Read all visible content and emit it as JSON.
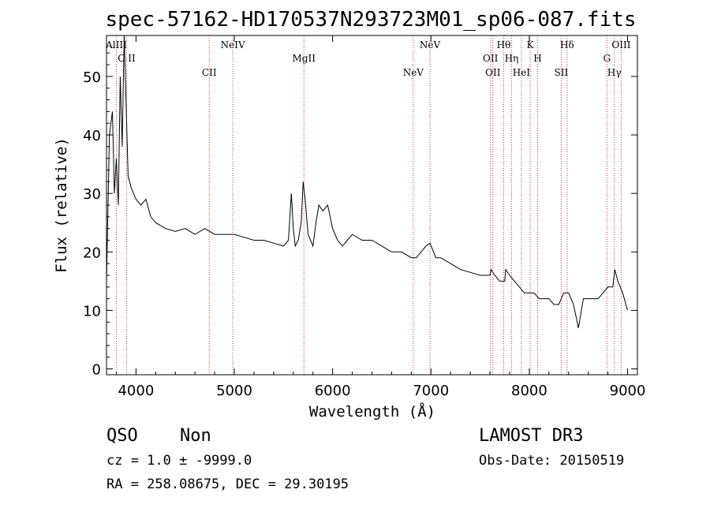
{
  "chart_data": {
    "type": "line",
    "title": "spec-57162-HD170537N293723M01_sp06-087.fits",
    "xlabel": "Wavelength (Å)",
    "ylabel": "Flux (relative)",
    "xlim": [
      3700,
      9100
    ],
    "ylim": [
      -1,
      57
    ],
    "xticks": [
      4000,
      5000,
      6000,
      7000,
      8000,
      9000
    ],
    "yticks": [
      0,
      10,
      20,
      30,
      40,
      50
    ],
    "grid": false,
    "series": [
      {
        "x": [
          3700,
          3730,
          3760,
          3780,
          3800,
          3820,
          3840,
          3860,
          3880,
          3900,
          3920,
          3950,
          4000,
          4050,
          4100,
          4150,
          4200,
          4300,
          4400,
          4500,
          4600,
          4700,
          4800,
          4900,
          5000,
          5100,
          5200,
          5300,
          5400,
          5500,
          5550,
          5580,
          5600,
          5620,
          5650,
          5680,
          5700,
          5720,
          5750,
          5800,
          5830,
          5860,
          5900,
          5950,
          6000,
          6050,
          6100,
          6150,
          6200,
          6300,
          6400,
          6500,
          6600,
          6700,
          6800,
          6850,
          6900,
          6950,
          6990,
          7050,
          7100,
          7200,
          7300,
          7400,
          7500,
          7600,
          7610,
          7650,
          7700,
          7750,
          7760,
          7800,
          7850,
          7900,
          7950,
          8000,
          8050,
          8100,
          8150,
          8200,
          8250,
          8300,
          8350,
          8400,
          8450,
          8500,
          8550,
          8600,
          8650,
          8700,
          8750,
          8800,
          8850,
          8870,
          8900,
          8950,
          9000
        ],
        "y": [
          15,
          40,
          44,
          30,
          36,
          28,
          50,
          38,
          57,
          45,
          33,
          31,
          29,
          28,
          29,
          26,
          25,
          24,
          23.5,
          24,
          23,
          24,
          23,
          23,
          23,
          22.5,
          22,
          22,
          21.5,
          21,
          22,
          30,
          24,
          21,
          22,
          25,
          32,
          29,
          23,
          21,
          25,
          28,
          27,
          28,
          24,
          22,
          21,
          22,
          23,
          22,
          22,
          21,
          20,
          20,
          19,
          19,
          20,
          21,
          21.5,
          19,
          19,
          18,
          17,
          16.5,
          16,
          16,
          17,
          16,
          15,
          15,
          17,
          16,
          15,
          14,
          13,
          13,
          13,
          12,
          12,
          12,
          11,
          11,
          13,
          13,
          11,
          7,
          12,
          12,
          12,
          12,
          13,
          14,
          14,
          17,
          15,
          13,
          10
        ]
      }
    ],
    "spectral_lines": [
      {
        "label": "AlIII",
        "x": 3800
      },
      {
        "label": "C II",
        "x": 3905
      },
      {
        "label": "CII",
        "x": 4745
      },
      {
        "label": "NeIV",
        "x": 4985
      },
      {
        "label": "MgII",
        "x": 5708
      },
      {
        "label": "NeV",
        "x": 6820
      },
      {
        "label": "NeV",
        "x": 6990
      },
      {
        "label": "OII",
        "x": 7605
      },
      {
        "label": "OII",
        "x": 7630
      },
      {
        "label": "Hθ",
        "x": 7740
      },
      {
        "label": "Hη",
        "x": 7820
      },
      {
        "label": "HeI",
        "x": 7920
      },
      {
        "label": "K",
        "x": 8010
      },
      {
        "label": "H",
        "x": 8085
      },
      {
        "label": "SII",
        "x": 8325
      },
      {
        "label": "Hδ",
        "x": 8385
      },
      {
        "label": "G",
        "x": 8790
      },
      {
        "label": "Hγ",
        "x": 8865
      },
      {
        "label": "OIII",
        "x": 8935
      }
    ]
  },
  "info": {
    "class": "QSO",
    "subclass": "Non",
    "survey": "LAMOST DR3",
    "cz": "cz = 1.0 ± -9999.0",
    "obs_date": "Obs-Date: 20150519",
    "coords": "RA = 258.08675, DEC =  29.30195"
  }
}
